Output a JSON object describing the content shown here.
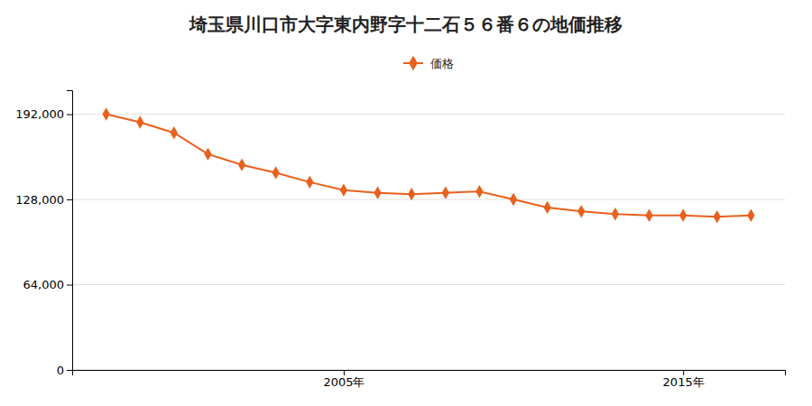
{
  "chart_data": {
    "type": "line",
    "title": "埼玉県川口市大字東内野字十二石５６番６の地価推移",
    "x": [
      1998,
      1999,
      2000,
      2001,
      2002,
      2003,
      2004,
      2005,
      2006,
      2007,
      2008,
      2009,
      2010,
      2011,
      2012,
      2013,
      2014,
      2015,
      2016,
      2017
    ],
    "series": [
      {
        "name": "価格",
        "color": "#e8601c",
        "marker": "diamond",
        "values": [
          192000,
          186000,
          178000,
          162000,
          154000,
          148000,
          141000,
          135000,
          133000,
          132000,
          133000,
          134000,
          128000,
          122000,
          119000,
          117000,
          116000,
          116000,
          115000,
          116000
        ]
      }
    ],
    "xlim": [
      1997,
      2018
    ],
    "xticks": [
      {
        "value": 2005,
        "label": "2005年"
      },
      {
        "value": 2015,
        "label": "2015年"
      }
    ],
    "ylim": [
      0,
      210000
    ],
    "yticks": [
      0,
      {
        "value": 64000,
        "label": "64,000"
      },
      {
        "value": 128000,
        "label": "128,000"
      },
      {
        "value": 192000,
        "label": "192,000"
      }
    ],
    "grid": true,
    "legend": "top"
  }
}
